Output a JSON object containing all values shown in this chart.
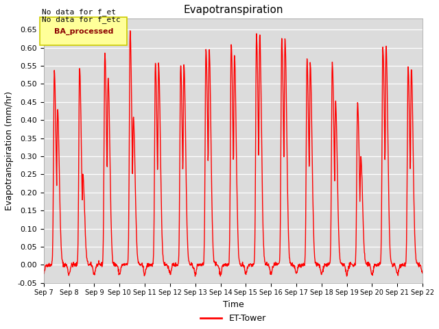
{
  "title": "Evapotranspiration",
  "xlabel": "Time",
  "ylabel": "Evapotranspiration (mm/hr)",
  "ylim": [
    -0.05,
    0.68
  ],
  "yticks": [
    -0.05,
    0.0,
    0.05,
    0.1,
    0.15,
    0.2,
    0.25,
    0.3,
    0.35,
    0.4,
    0.45,
    0.5,
    0.55,
    0.6,
    0.65
  ],
  "line_color": "#ff0000",
  "line_width": 1.0,
  "background_color": "#dcdcdc",
  "figure_bg": "#ffffff",
  "legend_box_label": "BA_processed",
  "legend_box_bg": "#ffff99",
  "legend_box_edge": "#cccc00",
  "annotation1": "No data for f_et",
  "annotation2": "No data for f_etc",
  "legend_line_label": "ET-Tower",
  "n_days": 15,
  "peaks": [
    {
      "peak1": 0.535,
      "peak2": 0.43,
      "mid_dip": 0.23
    },
    {
      "peak1": 0.545,
      "peak2": 0.25,
      "mid_dip": 0.235
    },
    {
      "peak1": 0.585,
      "peak2": 0.52,
      "mid_dip": 0.25
    },
    {
      "peak1": 0.645,
      "peak2": 0.41,
      "mid_dip": 0.24
    },
    {
      "peak1": 0.555,
      "peak2": 0.555,
      "mid_dip": 0.24
    },
    {
      "peak1": 0.555,
      "peak2": 0.555,
      "mid_dip": 0.24
    },
    {
      "peak1": 0.595,
      "peak2": 0.595,
      "mid_dip": 0.24
    },
    {
      "peak1": 0.61,
      "peak2": 0.58,
      "mid_dip": 0.24
    },
    {
      "peak1": 0.635,
      "peak2": 0.635,
      "mid_dip": 0.24
    },
    {
      "peak1": 0.625,
      "peak2": 0.625,
      "mid_dip": 0.24
    },
    {
      "peak1": 0.565,
      "peak2": 0.555,
      "mid_dip": 0.24
    },
    {
      "peak1": 0.56,
      "peak2": 0.45,
      "mid_dip": 0.24
    },
    {
      "peak1": 0.45,
      "peak2": 0.3,
      "mid_dip": 0.14
    },
    {
      "peak1": 0.605,
      "peak2": 0.605,
      "mid_dip": 0.24
    },
    {
      "peak1": 0.545,
      "peak2": 0.545,
      "mid_dip": 0.24
    }
  ]
}
